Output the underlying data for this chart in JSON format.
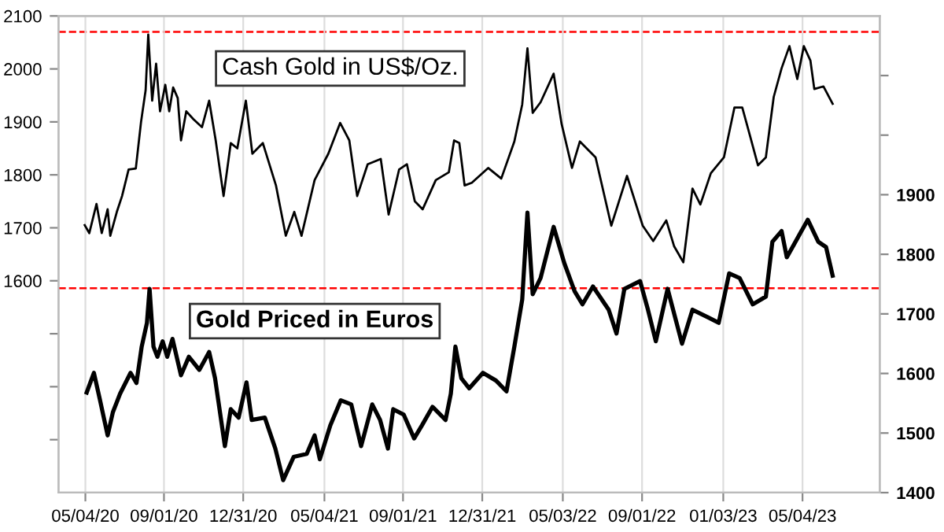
{
  "chart_data": {
    "type": "line",
    "xlim": [
      "2020-03-24",
      "2023-08-30"
    ],
    "xticks": [
      {
        "value": "2020-05-04",
        "label": "05/04/20"
      },
      {
        "value": "2020-09-01",
        "label": "09/01/20"
      },
      {
        "value": "2020-12-31",
        "label": "12/31/20"
      },
      {
        "value": "2021-05-04",
        "label": "05/04/21"
      },
      {
        "value": "2021-09-01",
        "label": "09/01/21"
      },
      {
        "value": "2021-12-31",
        "label": "12/31/21"
      },
      {
        "value": "2022-05-03",
        "label": "05/03/22"
      },
      {
        "value": "2022-09-01",
        "label": "09/01/22"
      },
      {
        "value": "2023-01-03",
        "label": "01/03/23"
      },
      {
        "value": "2023-05-04",
        "label": "05/04/23"
      }
    ],
    "ylim": [
      1200,
      2100
    ],
    "yticks": [
      {
        "value": 1300,
        "label": null
      },
      {
        "value": 1400,
        "label": null
      },
      {
        "value": 1500,
        "label": null
      },
      1600,
      1700,
      1800,
      1900,
      2000,
      2100
    ],
    "y2lim": [
      1400,
      2200
    ],
    "y2ticks": [
      1400,
      1500,
      1600,
      1700,
      1800,
      1900,
      {
        "value": 2000,
        "label": null
      },
      {
        "value": 2100,
        "label": null
      }
    ],
    "grid": "x",
    "legend": false,
    "marker": "none",
    "line_style": "solid",
    "ref_lines": [
      {
        "axis": "y",
        "value": 2070,
        "color": "#ff0000",
        "line_style": "dashed"
      },
      {
        "axis": "y2",
        "value": 1743,
        "color": "#ff0000",
        "line_style": "dashed"
      }
    ],
    "series": [
      {
        "name": "Cash Gold in US$/Oz.",
        "color": "#000000",
        "axis": "y",
        "x": [
          "2020-05-03",
          "2020-05-10",
          "2020-05-21",
          "2020-05-29",
          "2020-06-07",
          "2020-06-11",
          "2020-06-21",
          "2020-06-29",
          "2020-07-09",
          "2020-07-20",
          "2020-07-28",
          "2020-08-04",
          "2020-08-08",
          "2020-08-14",
          "2020-08-20",
          "2020-08-26",
          "2020-09-03",
          "2020-09-09",
          "2020-09-15",
          "2020-09-22",
          "2020-09-27",
          "2020-10-05",
          "2020-10-16",
          "2020-10-29",
          "2020-11-09",
          "2020-11-19",
          "2020-12-01",
          "2020-12-12",
          "2020-12-22",
          "2021-01-04",
          "2021-01-14",
          "2021-01-30",
          "2021-02-19",
          "2021-03-06",
          "2021-03-19",
          "2021-03-30",
          "2021-04-19",
          "2021-05-10",
          "2021-05-28",
          "2021-06-11",
          "2021-06-23",
          "2021-07-09",
          "2021-07-29",
          "2021-08-10",
          "2021-08-26",
          "2021-09-07",
          "2021-09-19",
          "2021-10-01",
          "2021-10-21",
          "2021-11-10",
          "2021-11-18",
          "2021-11-26",
          "2021-12-04",
          "2021-12-15",
          "2022-01-09",
          "2022-01-29",
          "2022-02-18",
          "2022-03-02",
          "2022-03-10",
          "2022-03-18",
          "2022-03-30",
          "2022-04-19",
          "2022-05-01",
          "2022-05-17",
          "2022-05-29",
          "2022-06-22",
          "2022-07-16",
          "2022-08-09",
          "2022-09-02",
          "2022-09-18",
          "2022-10-08",
          "2022-10-20",
          "2022-11-03",
          "2022-11-17",
          "2022-11-29",
          "2022-12-15",
          "2023-01-04",
          "2023-01-20",
          "2023-02-01",
          "2023-02-13",
          "2023-02-25",
          "2023-03-09",
          "2023-03-21",
          "2023-04-02",
          "2023-04-14",
          "2023-04-26",
          "2023-05-06",
          "2023-05-16",
          "2023-05-22",
          "2023-06-05",
          "2023-06-19"
        ],
        "values": [
          1705,
          1690,
          1745,
          1690,
          1735,
          1685,
          1730,
          1760,
          1810,
          1812,
          1900,
          1960,
          2065,
          1940,
          2010,
          1920,
          1970,
          1920,
          1965,
          1945,
          1865,
          1920,
          1905,
          1890,
          1940,
          1865,
          1760,
          1860,
          1850,
          1940,
          1840,
          1860,
          1780,
          1685,
          1730,
          1685,
          1790,
          1840,
          1898,
          1865,
          1760,
          1820,
          1830,
          1725,
          1810,
          1820,
          1750,
          1735,
          1790,
          1805,
          1865,
          1860,
          1780,
          1785,
          1813,
          1793,
          1863,
          1933,
          2039,
          1917,
          1937,
          1991,
          1897,
          1813,
          1863,
          1833,
          1704,
          1798,
          1704,
          1675,
          1714,
          1665,
          1635,
          1774,
          1744,
          1803,
          1833,
          1927,
          1927,
          1873,
          1818,
          1833,
          1947,
          2001,
          2043,
          1981,
          2043,
          2016,
          1962,
          1967,
          1934
        ]
      },
      {
        "name": "Gold Priced in Euros",
        "color": "#000000",
        "axis": "y2",
        "x": [
          "2020-05-06",
          "2020-05-17",
          "2020-05-26",
          "2020-06-07",
          "2020-06-15",
          "2020-06-26",
          "2020-07-12",
          "2020-07-21",
          "2020-07-29",
          "2020-08-06",
          "2020-08-10",
          "2020-08-16",
          "2020-08-22",
          "2020-08-30",
          "2020-09-06",
          "2020-09-14",
          "2020-09-27",
          "2020-10-09",
          "2020-10-25",
          "2020-11-09",
          "2020-11-18",
          "2020-12-03",
          "2020-12-12",
          "2020-12-24",
          "2021-01-05",
          "2021-01-13",
          "2021-02-02",
          "2021-02-18",
          "2021-03-02",
          "2021-03-18",
          "2021-04-07",
          "2021-04-19",
          "2021-04-27",
          "2021-05-13",
          "2021-05-29",
          "2021-06-14",
          "2021-06-29",
          "2021-07-16",
          "2021-07-28",
          "2021-08-09",
          "2021-08-17",
          "2021-09-02",
          "2021-09-18",
          "2021-09-30",
          "2021-10-16",
          "2021-11-05",
          "2021-11-13",
          "2021-11-20",
          "2021-11-29",
          "2021-12-11",
          "2022-01-01",
          "2022-01-21",
          "2022-02-06",
          "2022-02-18",
          "2022-03-02",
          "2022-03-10",
          "2022-03-18",
          "2022-03-30",
          "2022-04-19",
          "2022-05-05",
          "2022-05-21",
          "2022-06-02",
          "2022-06-18",
          "2022-07-12",
          "2022-07-24",
          "2022-08-05",
          "2022-08-29",
          "2022-09-10",
          "2022-09-22",
          "2022-10-10",
          "2022-11-01",
          "2022-11-17",
          "2022-12-11",
          "2022-12-27",
          "2023-01-12",
          "2023-01-28",
          "2023-02-17",
          "2023-03-09",
          "2023-03-19",
          "2023-04-02",
          "2023-04-10",
          "2023-05-12",
          "2023-05-28",
          "2023-06-09",
          "2023-06-19"
        ],
        "values": [
          1568,
          1601,
          1557,
          1496,
          1535,
          1566,
          1601,
          1584,
          1645,
          1685,
          1742,
          1645,
          1628,
          1654,
          1628,
          1658,
          1597,
          1628,
          1606,
          1636,
          1592,
          1478,
          1540,
          1526,
          1585,
          1522,
          1526,
          1474,
          1421,
          1460,
          1465,
          1496,
          1456,
          1513,
          1555,
          1548,
          1478,
          1548,
          1522,
          1474,
          1540,
          1531,
          1491,
          1513,
          1544,
          1522,
          1566,
          1645,
          1592,
          1575,
          1601,
          1588,
          1570,
          1645,
          1724,
          1870,
          1733,
          1760,
          1846,
          1786,
          1738,
          1716,
          1746,
          1707,
          1667,
          1742,
          1755,
          1707,
          1654,
          1742,
          1650,
          1707,
          1694,
          1685,
          1768,
          1760,
          1716,
          1729,
          1821,
          1839,
          1795,
          1858,
          1821,
          1812,
          1764
        ]
      }
    ]
  }
}
